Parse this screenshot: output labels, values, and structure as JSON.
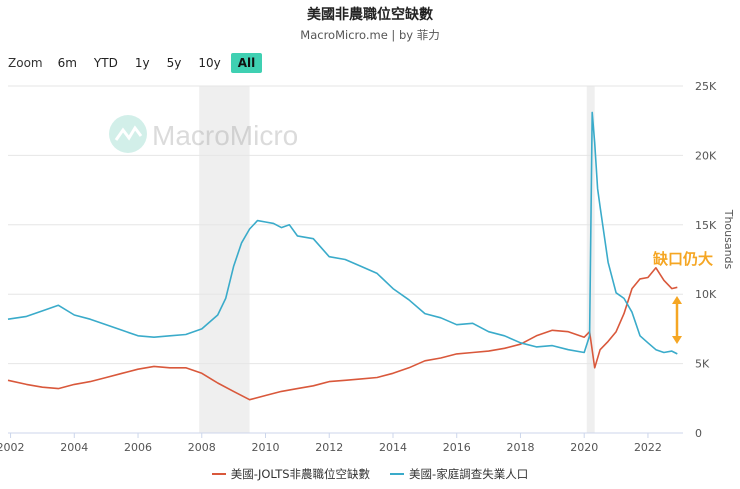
{
  "title": "美國非農職位空缺數",
  "subtitle": "MacroMicro.me | by 菲力",
  "zoom": {
    "label": "Zoom",
    "buttons": [
      "6m",
      "YTD",
      "1y",
      "5y",
      "10y",
      "All"
    ],
    "active": "All"
  },
  "watermark": "MacroMicro",
  "annotation": {
    "text": "缺口仍大",
    "color": "#f5a623"
  },
  "colors": {
    "jolts": "#d9583b",
    "unemployed": "#3aabca",
    "recession": "#efefef",
    "grid": "#e6e6e6"
  },
  "chart_data": {
    "type": "line",
    "ylabel": "Thousands",
    "ylim": [
      0,
      25000
    ],
    "y_ticks": [
      "0",
      "5K",
      "10K",
      "15K",
      "20K",
      "25K"
    ],
    "x_ticks": [
      "2002",
      "2004",
      "2006",
      "2008",
      "2010",
      "2012",
      "2014",
      "2016",
      "2018",
      "2020",
      "2022"
    ],
    "xlim": [
      2001.92,
      2023.1
    ],
    "recessions": [
      [
        2007.92,
        2009.5
      ],
      [
        2020.08,
        2020.33
      ]
    ],
    "series": [
      {
        "name": "美國-JOLTS非農職位空缺數",
        "color": "#d9583b",
        "x": [
          2001.92,
          2002.5,
          2003.0,
          2003.5,
          2004.0,
          2004.5,
          2005.0,
          2005.5,
          2006.0,
          2006.5,
          2007.0,
          2007.5,
          2008.0,
          2008.5,
          2009.0,
          2009.5,
          2010.0,
          2010.5,
          2011.0,
          2011.5,
          2012.0,
          2012.5,
          2013.0,
          2013.5,
          2014.0,
          2014.5,
          2015.0,
          2015.5,
          2016.0,
          2016.5,
          2017.0,
          2017.5,
          2018.0,
          2018.5,
          2019.0,
          2019.5,
          2020.0,
          2020.17,
          2020.33,
          2020.5,
          2020.75,
          2021.0,
          2021.25,
          2021.5,
          2021.75,
          2022.0,
          2022.25,
          2022.5,
          2022.75,
          2022.92
        ],
        "values": [
          3800,
          3500,
          3300,
          3200,
          3500,
          3700,
          4000,
          4300,
          4600,
          4800,
          4700,
          4700,
          4300,
          3600,
          3000,
          2400,
          2700,
          3000,
          3200,
          3400,
          3700,
          3800,
          3900,
          4000,
          4300,
          4700,
          5200,
          5400,
          5700,
          5800,
          5900,
          6100,
          6400,
          7000,
          7400,
          7300,
          6900,
          7300,
          4700,
          6000,
          6600,
          7300,
          8600,
          10400,
          11100,
          11200,
          11900,
          11000,
          10400,
          10500
        ]
      },
      {
        "name": "美國-家庭調查失業人口",
        "color": "#3aabca",
        "x": [
          2001.92,
          2002.5,
          2003.0,
          2003.5,
          2004.0,
          2004.5,
          2005.0,
          2005.5,
          2006.0,
          2006.5,
          2007.0,
          2007.5,
          2008.0,
          2008.5,
          2008.75,
          2009.0,
          2009.25,
          2009.5,
          2009.75,
          2010.0,
          2010.25,
          2010.5,
          2010.75,
          2011.0,
          2011.5,
          2012.0,
          2012.5,
          2013.0,
          2013.5,
          2014.0,
          2014.5,
          2015.0,
          2015.5,
          2016.0,
          2016.5,
          2017.0,
          2017.5,
          2018.0,
          2018.5,
          2019.0,
          2019.5,
          2020.0,
          2020.17,
          2020.25,
          2020.33,
          2020.42,
          2020.5,
          2020.75,
          2021.0,
          2021.25,
          2021.5,
          2021.75,
          2022.0,
          2022.25,
          2022.5,
          2022.75,
          2022.92
        ],
        "values": [
          8200,
          8400,
          8800,
          9200,
          8500,
          8200,
          7800,
          7400,
          7000,
          6900,
          7000,
          7100,
          7500,
          8500,
          9700,
          12000,
          13700,
          14700,
          15300,
          15200,
          15100,
          14800,
          15000,
          14200,
          14000,
          12700,
          12500,
          12000,
          11500,
          10400,
          9600,
          8600,
          8300,
          7800,
          7900,
          7300,
          7000,
          6500,
          6200,
          6300,
          6000,
          5800,
          7000,
          23100,
          20900,
          17600,
          16300,
          12300,
          10100,
          9700,
          8700,
          7000,
          6500,
          6000,
          5800,
          5900,
          5700
        ]
      }
    ]
  }
}
